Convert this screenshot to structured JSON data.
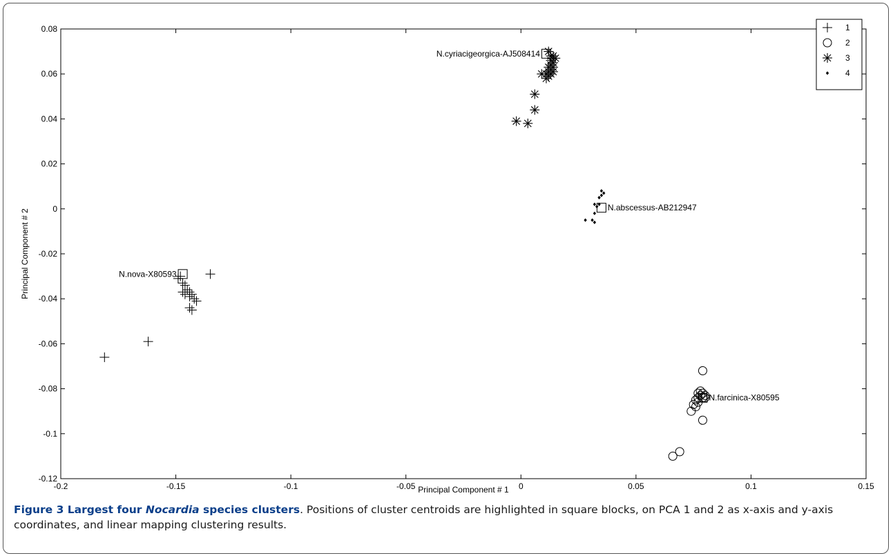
{
  "chart_data": {
    "type": "scatter",
    "xlabel": "Principal Component # 1",
    "ylabel": "Principal Component # 2",
    "xlim": [
      -0.2,
      0.15
    ],
    "ylim": [
      -0.12,
      0.08
    ],
    "xticks": [
      -0.2,
      -0.15,
      -0.1,
      -0.05,
      0,
      0.05,
      0.1,
      0.15
    ],
    "xtick_labels": [
      "-0.2",
      "-0.15",
      "-0.1",
      "-0.05",
      "0",
      "0.05",
      "0.1",
      "0.15"
    ],
    "yticks": [
      -0.12,
      -0.1,
      -0.08,
      -0.06,
      -0.04,
      -0.02,
      0,
      0.02,
      0.04,
      0.06,
      0.08
    ],
    "ytick_labels": [
      "-0.12",
      "-0.1",
      "-0.08",
      "-0.06",
      "-0.04",
      "-0.02",
      "0",
      "0.02",
      "0.04",
      "0.06",
      "0.08"
    ],
    "grid": false,
    "legend_position": "top-right",
    "series": [
      {
        "name": "1",
        "marker": "plus",
        "points": [
          [
            -0.181,
            -0.066
          ],
          [
            -0.162,
            -0.059
          ],
          [
            -0.135,
            -0.029
          ],
          [
            -0.149,
            -0.031
          ],
          [
            -0.148,
            -0.03
          ],
          [
            -0.147,
            -0.033
          ],
          [
            -0.146,
            -0.034
          ],
          [
            -0.147,
            -0.037
          ],
          [
            -0.146,
            -0.038
          ],
          [
            -0.145,
            -0.036
          ],
          [
            -0.144,
            -0.037
          ],
          [
            -0.144,
            -0.039
          ],
          [
            -0.143,
            -0.038
          ],
          [
            -0.142,
            -0.04
          ],
          [
            -0.141,
            -0.041
          ],
          [
            -0.144,
            -0.044
          ],
          [
            -0.143,
            -0.045
          ]
        ]
      },
      {
        "name": "2",
        "marker": "circle",
        "points": [
          [
            0.079,
            -0.072
          ],
          [
            0.077,
            -0.082
          ],
          [
            0.078,
            -0.081
          ],
          [
            0.079,
            -0.082
          ],
          [
            0.08,
            -0.083
          ],
          [
            0.078,
            -0.083
          ],
          [
            0.077,
            -0.084
          ],
          [
            0.079,
            -0.084
          ],
          [
            0.08,
            -0.084
          ],
          [
            0.076,
            -0.085
          ],
          [
            0.077,
            -0.086
          ],
          [
            0.075,
            -0.087
          ],
          [
            0.076,
            -0.088
          ],
          [
            0.074,
            -0.09
          ],
          [
            0.079,
            -0.094
          ],
          [
            0.069,
            -0.108
          ],
          [
            0.066,
            -0.11
          ]
        ]
      },
      {
        "name": "3",
        "marker": "asterisk",
        "points": [
          [
            0.012,
            0.07
          ],
          [
            0.013,
            0.068
          ],
          [
            0.014,
            0.068
          ],
          [
            0.015,
            0.067
          ],
          [
            0.013,
            0.066
          ],
          [
            0.014,
            0.065
          ],
          [
            0.013,
            0.064
          ],
          [
            0.012,
            0.063
          ],
          [
            0.014,
            0.063
          ],
          [
            0.013,
            0.062
          ],
          [
            0.012,
            0.061
          ],
          [
            0.014,
            0.061
          ],
          [
            0.011,
            0.06
          ],
          [
            0.013,
            0.06
          ],
          [
            0.012,
            0.059
          ],
          [
            0.009,
            0.06
          ],
          [
            0.011,
            0.058
          ],
          [
            0.006,
            0.051
          ],
          [
            0.006,
            0.044
          ],
          [
            -0.002,
            0.039
          ],
          [
            0.003,
            0.038
          ]
        ]
      },
      {
        "name": "4",
        "marker": "dot",
        "points": [
          [
            0.035,
            0.008
          ],
          [
            0.036,
            0.007
          ],
          [
            0.035,
            0.006
          ],
          [
            0.034,
            0.005
          ],
          [
            0.032,
            0.002
          ],
          [
            0.034,
            0.002
          ],
          [
            0.033,
            0.001
          ],
          [
            0.032,
            -0.002
          ],
          [
            0.028,
            -0.005
          ],
          [
            0.031,
            -0.005
          ],
          [
            0.032,
            -0.006
          ]
        ]
      }
    ],
    "centroids": [
      {
        "label": "N.nova-X80593",
        "x": -0.147,
        "y": -0.029,
        "label_side": "left"
      },
      {
        "label": "N.cyriacigeorgica-AJ508414",
        "x": 0.011,
        "y": 0.069,
        "label_side": "left"
      },
      {
        "label": "N.abscessus-AB212947",
        "x": 0.035,
        "y": 0.0005,
        "label_side": "right"
      },
      {
        "label": "N.farcinica-X80595",
        "x": 0.079,
        "y": -0.084,
        "label_side": "right"
      }
    ]
  },
  "caption": {
    "title_prefix": "Figure 3 Largest four ",
    "title_species": "Nocardia",
    "title_suffix": " species clusters",
    "body": ". Positions of cluster centroids are highlighted in square blocks, on PCA 1 and 2 as x-axis and y-axis coordinates, and linear mapping clustering results."
  },
  "colors": {
    "marker": "#000000",
    "caption_title": "#0b3f8a",
    "caption_text": "#1a1a1a"
  }
}
